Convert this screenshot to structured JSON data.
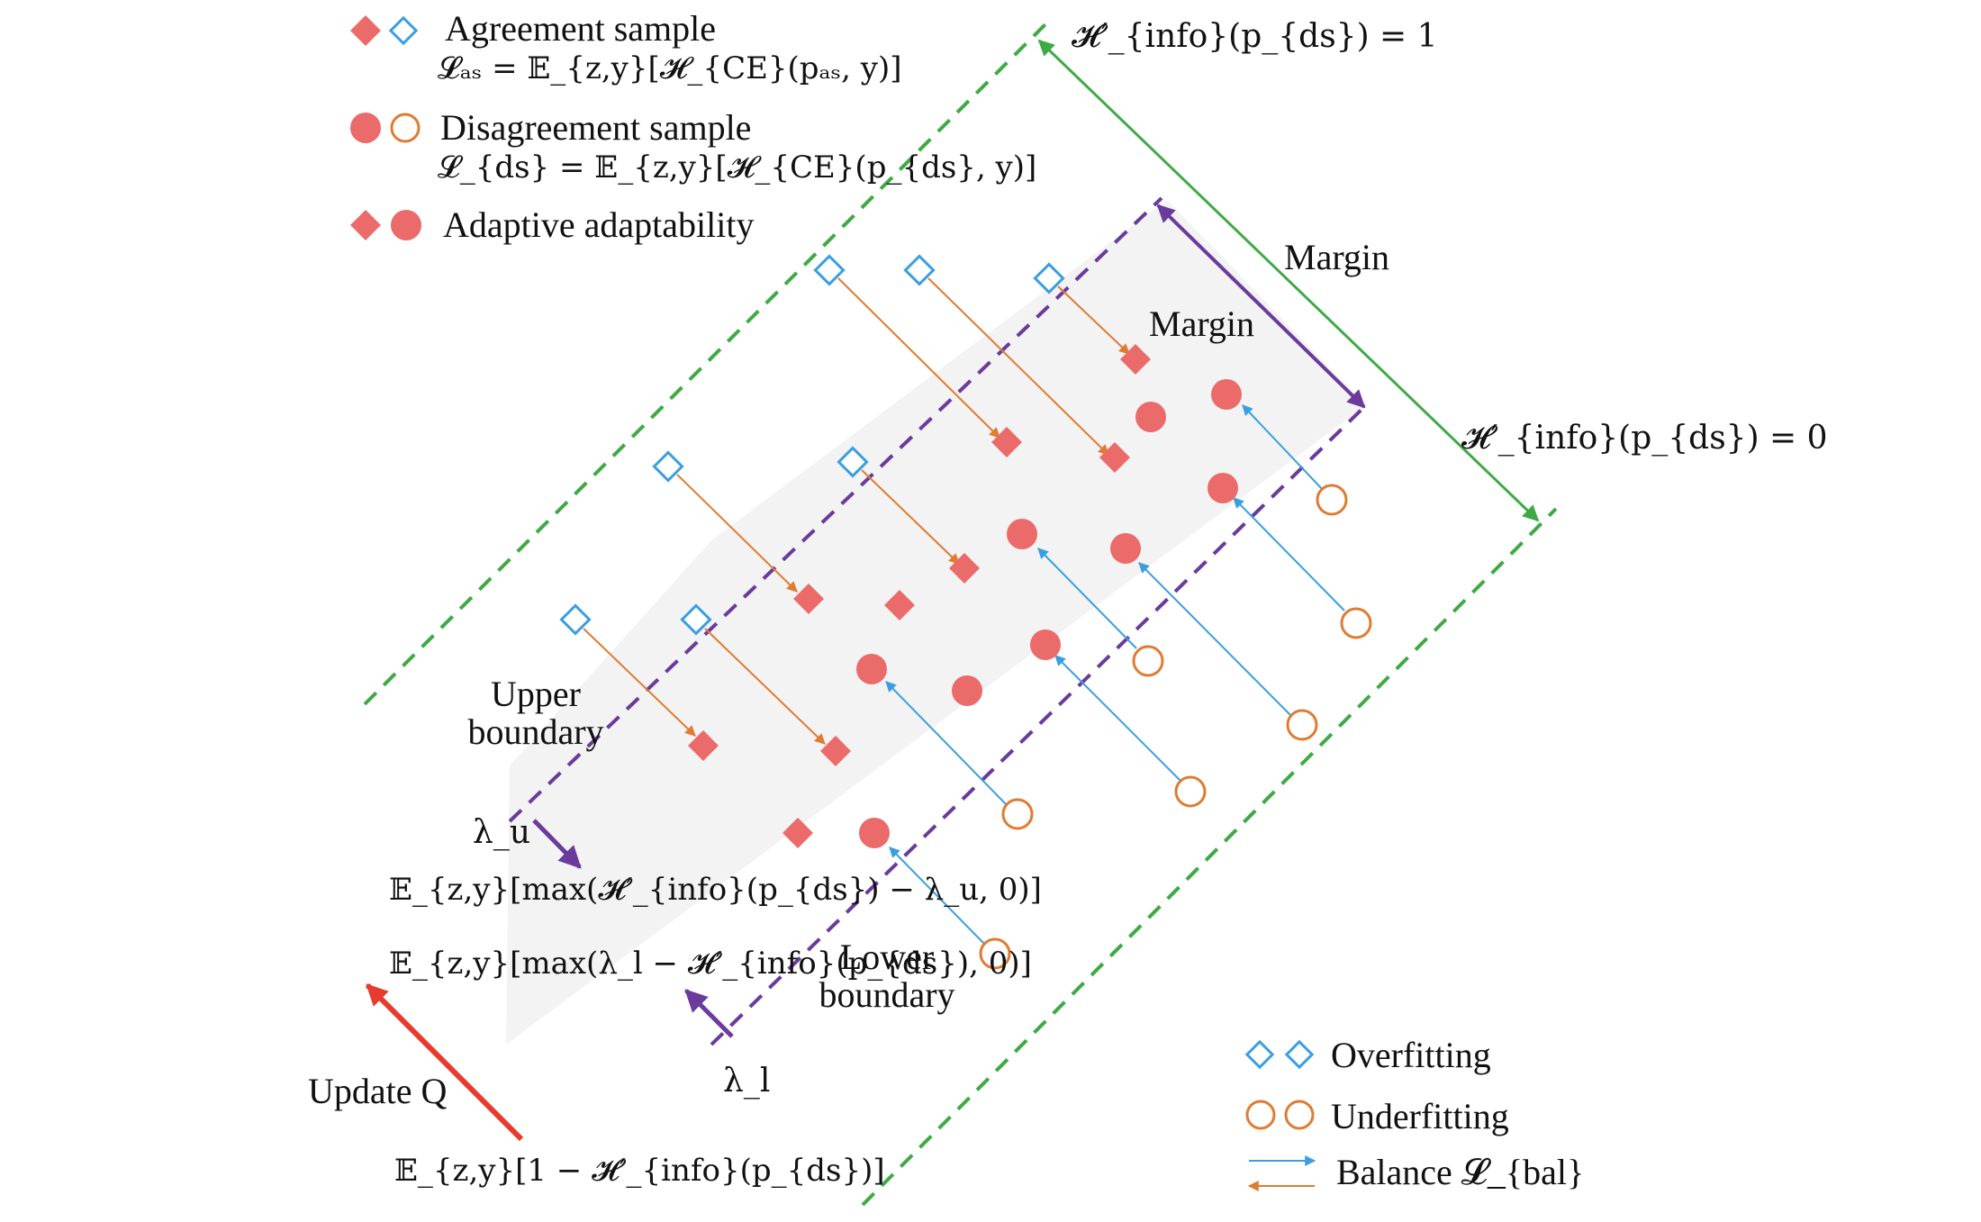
{
  "legend_top": {
    "agreement": {
      "title": "Agreement sample",
      "formula": "𝓛ₐₛ = 𝔼_{z,y}[𝓗_{CE}(pₐₛ, y)]",
      "marker_fill": "#ea6b69",
      "marker_outline": "#3a9fe0",
      "marker_shape": "diamond"
    },
    "disagreement": {
      "title": "Disagreement sample",
      "formula": "𝓛_{ds} = 𝔼_{z,y}[𝓗_{CE}(p_{ds}, y)]",
      "marker_fill": "#ea6b69",
      "marker_outline": "#e07b32",
      "marker_shape": "circle"
    },
    "adaptive": {
      "title": "Adaptive adaptability"
    }
  },
  "legend_bottom": {
    "overfitting": "Overfitting",
    "underfitting": "Underfitting",
    "balance": "Balance 𝓛_{bal}"
  },
  "labels": {
    "h_info_1": "𝓗′_{info}(p_{ds}) = 1",
    "h_info_0": "𝓗′_{info}(p_{ds}) = 0",
    "margin_outer": "Margin",
    "margin_inner": "Margin",
    "upper_boundary_line1": "Upper",
    "upper_boundary_line2": "boundary",
    "lower_boundary_line1": "Lower",
    "lower_boundary_line2": "boundary",
    "lambda_u": "λ_u",
    "lambda_l": "λ_l",
    "loss_upper": "𝔼_{z,y}[max(𝓗′_{info}(p_{ds}) − λ_u, 0)]",
    "loss_lower": "𝔼_{z,y}[max(λ_l − 𝓗′_{info}(p_{ds}), 0)]",
    "update_q": "Update Q",
    "loss_q": "𝔼_{z,y}[1 − 𝓗′_{info}(p_{ds})]"
  },
  "colors": {
    "sample_red": "#ea6b69",
    "overfit_blue": "#3a9fe0",
    "underfit_orange": "#e07b32",
    "outer_green": "#3faa45",
    "inner_purple": "#6a3b9c",
    "update_red": "#e63b2e",
    "band_gray": "#f4f4f4"
  }
}
